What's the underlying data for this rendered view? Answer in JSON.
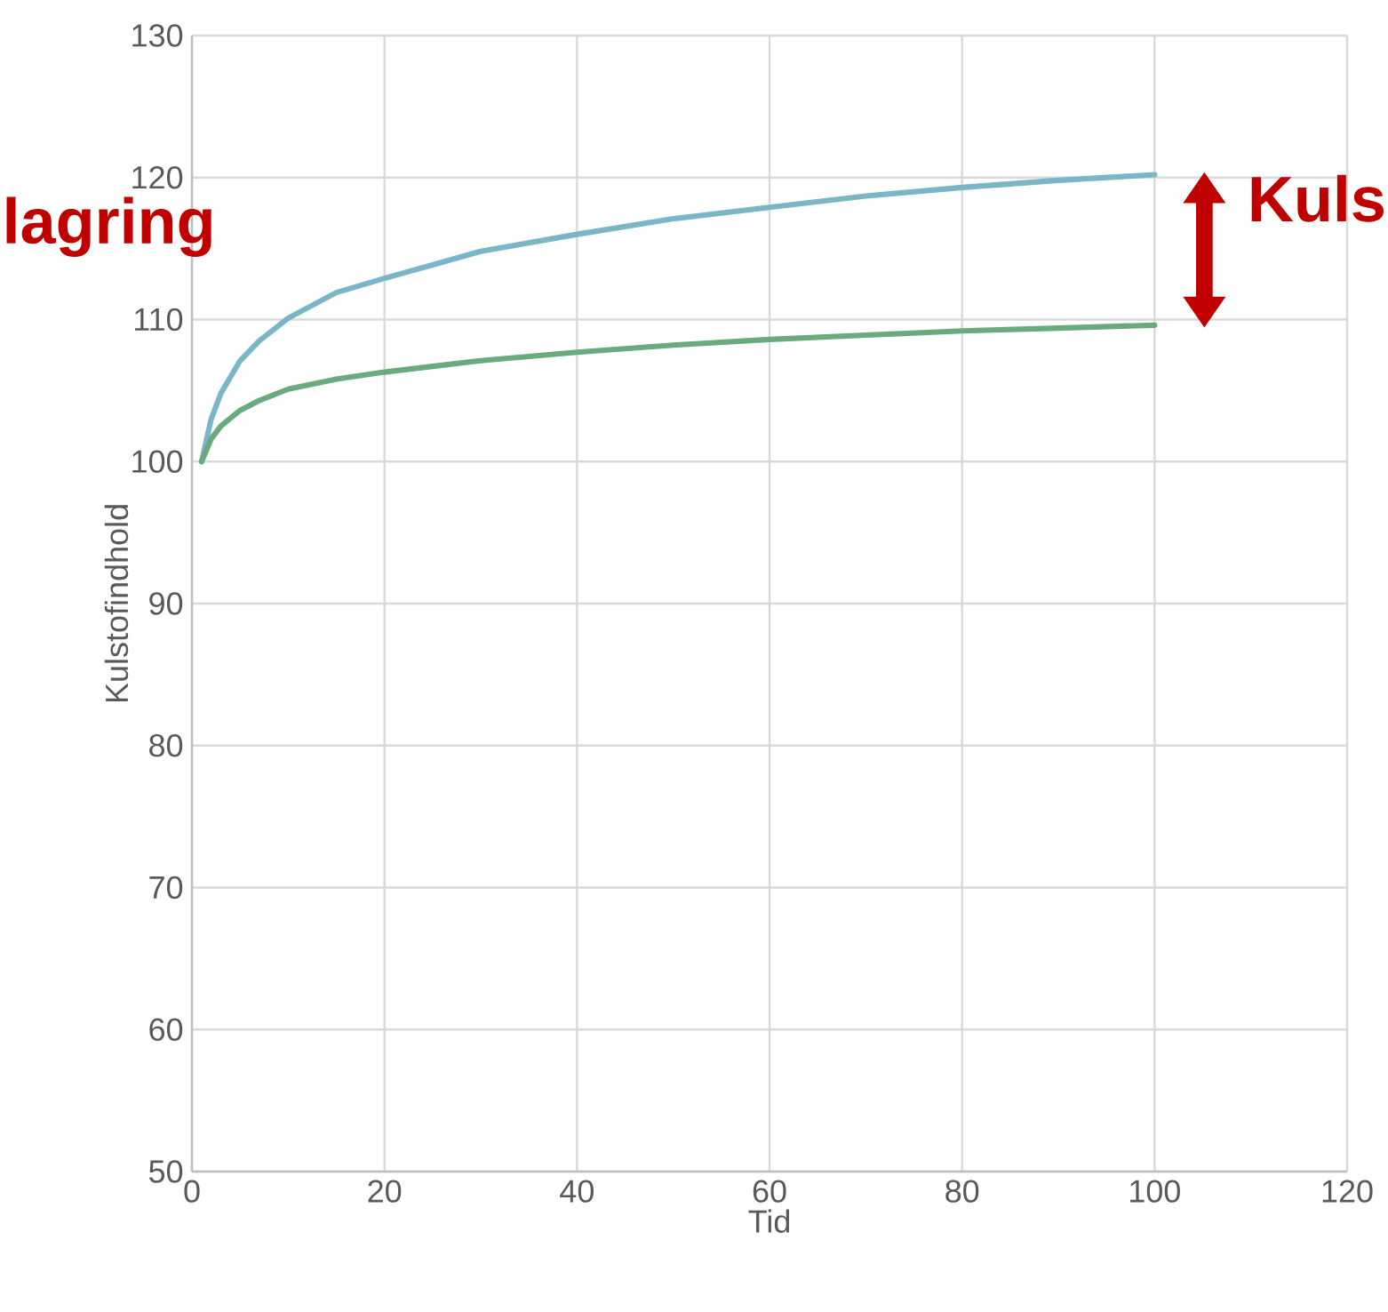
{
  "chart_data": {
    "type": "line",
    "xlabel": "Tid",
    "ylabel": "Kulstofindhold",
    "xlim": [
      0,
      120
    ],
    "xticks": [
      0,
      20,
      40,
      60,
      80,
      100,
      120
    ],
    "ylim": [
      50,
      130
    ],
    "yticks": [
      50,
      60,
      70,
      80,
      90,
      100,
      110,
      120,
      130
    ],
    "grid": true,
    "marker": "none",
    "line_style": "solid",
    "annotations": [
      "lagring",
      "Kuls"
    ],
    "x": [
      1,
      2,
      3,
      5,
      7,
      10,
      15,
      20,
      30,
      40,
      50,
      60,
      70,
      80,
      90,
      100
    ],
    "series": [
      {
        "color": "#7ab5c8",
        "values": [
          100,
          103.0,
          104.8,
          107.1,
          108.5,
          110.1,
          111.9,
          112.9,
          114.8,
          116.0,
          117.1,
          117.9,
          118.7,
          119.3,
          119.8,
          120.2
        ]
      },
      {
        "color": "#6aaa7e",
        "values": [
          100,
          101.6,
          102.5,
          103.6,
          104.3,
          105.1,
          105.8,
          106.3,
          107.1,
          107.7,
          108.2,
          108.6,
          108.9,
          109.2,
          109.4,
          109.6
        ]
      }
    ]
  }
}
